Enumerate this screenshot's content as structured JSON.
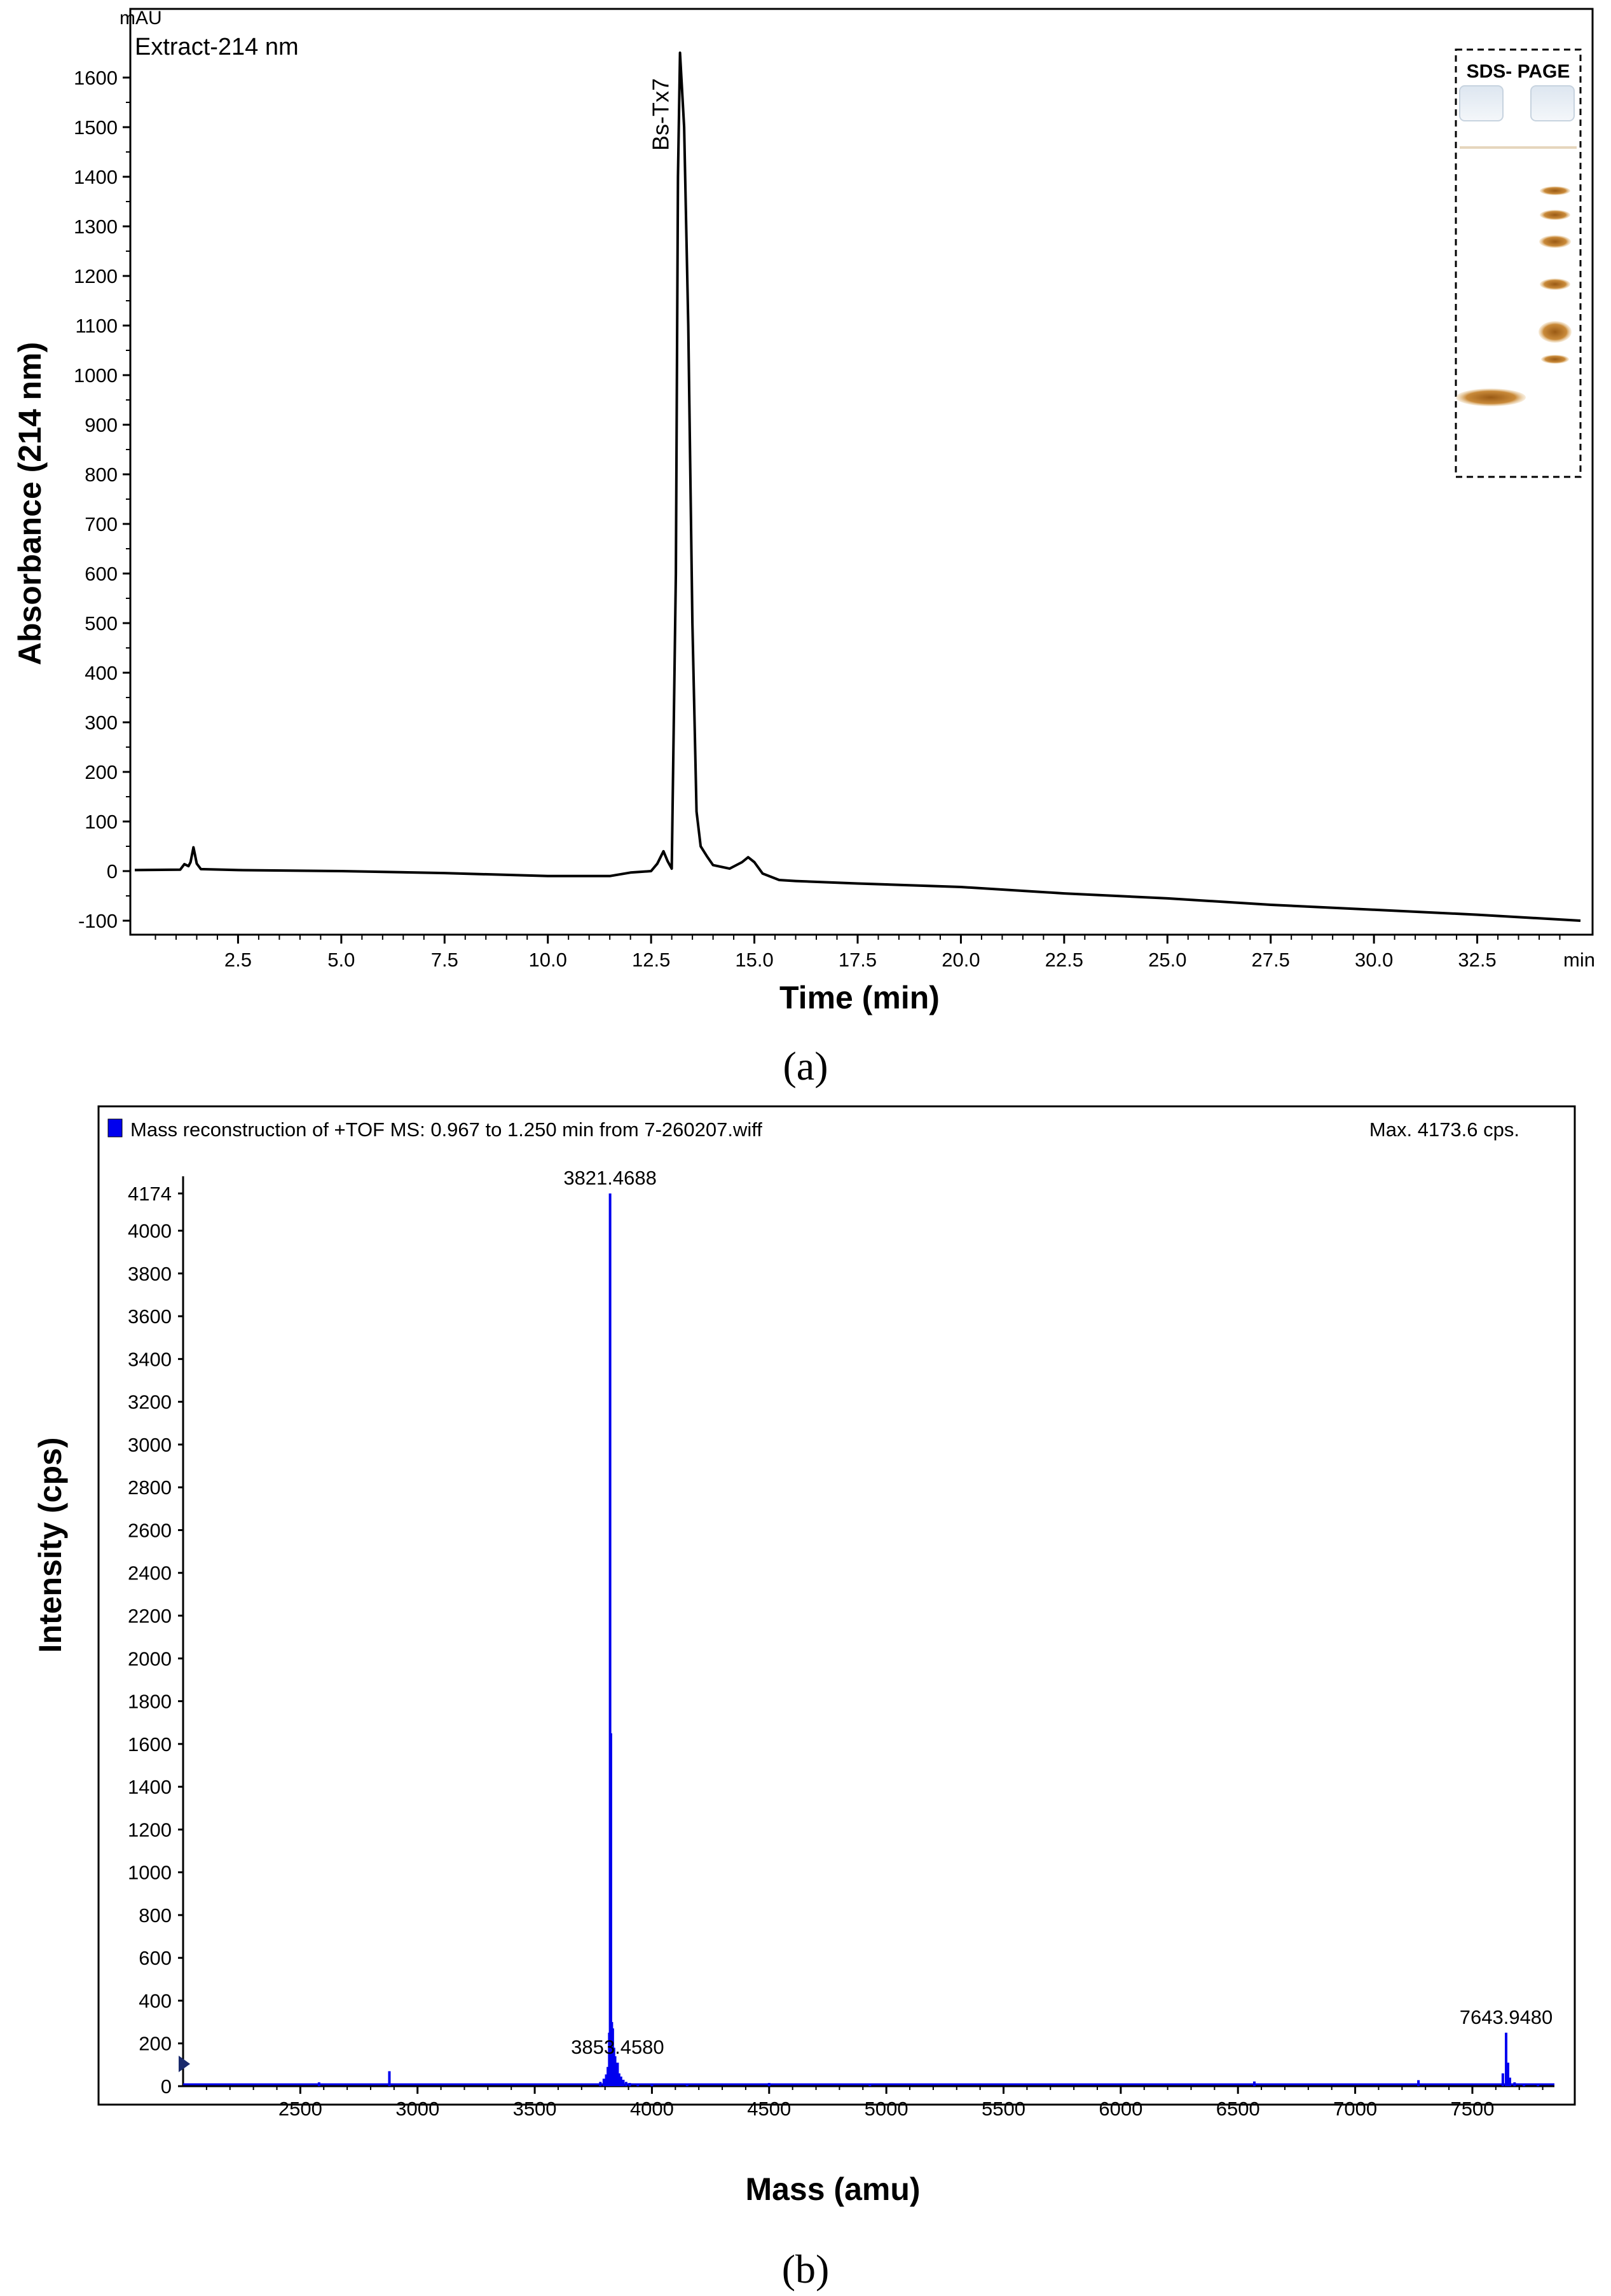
{
  "chart_data": [
    {
      "panel": "(a)",
      "type": "line",
      "unit_label": "mAU",
      "legend": "Extract-214 nm",
      "xlabel": "Time (min)",
      "ylabel": "Absorbance (214 nm)",
      "x_unit_tick": "min",
      "xlim": [
        0,
        35
      ],
      "ylim": [
        -100,
        1650
      ],
      "xticks": [
        "2.5",
        "5.0",
        "7.5",
        "10.0",
        "12.5",
        "15.0",
        "17.5",
        "20.0",
        "22.5",
        "25.0",
        "27.5",
        "30.0",
        "32.5"
      ],
      "yticks": [
        "-100",
        "0",
        "100",
        "200",
        "300",
        "400",
        "500",
        "600",
        "700",
        "800",
        "900",
        "1000",
        "1100",
        "1200",
        "1300",
        "1400",
        "1500",
        "1600"
      ],
      "peak_label": "Bs-Tx7",
      "peak_at": [
        13.2,
        1650
      ],
      "inset": {
        "label": "SDS- PAGE"
      },
      "series": [
        {
          "points": [
            [
              0,
              2
            ],
            [
              1.1,
              3
            ],
            [
              1.2,
              14
            ],
            [
              1.3,
              10
            ],
            [
              1.35,
              18
            ],
            [
              1.42,
              48
            ],
            [
              1.5,
              15
            ],
            [
              1.6,
              4
            ],
            [
              2.5,
              2
            ],
            [
              5,
              0
            ],
            [
              7.5,
              -4
            ],
            [
              10,
              -10
            ],
            [
              11.5,
              -10
            ],
            [
              12.0,
              -3
            ],
            [
              12.5,
              0
            ],
            [
              12.65,
              15
            ],
            [
              12.8,
              40
            ],
            [
              12.9,
              20
            ],
            [
              13.0,
              5
            ],
            [
              13.1,
              600
            ],
            [
              13.15,
              1400
            ],
            [
              13.2,
              1650
            ],
            [
              13.3,
              1500
            ],
            [
              13.4,
              1100
            ],
            [
              13.5,
              500
            ],
            [
              13.6,
              120
            ],
            [
              13.7,
              50
            ],
            [
              13.85,
              30
            ],
            [
              14.0,
              12
            ],
            [
              14.4,
              5
            ],
            [
              14.7,
              18
            ],
            [
              14.85,
              28
            ],
            [
              15.0,
              18
            ],
            [
              15.2,
              -5
            ],
            [
              15.6,
              -18
            ],
            [
              16,
              -20
            ],
            [
              17.5,
              -25
            ],
            [
              20,
              -32
            ],
            [
              22.5,
              -45
            ],
            [
              25,
              -55
            ],
            [
              27.5,
              -68
            ],
            [
              30,
              -78
            ],
            [
              32.5,
              -88
            ],
            [
              35,
              -100
            ]
          ]
        }
      ]
    },
    {
      "panel": "(b)",
      "type": "bar",
      "title": "Mass reconstruction of +TOF MS: 0.967 to 1.250 min from 7-260207.wiff",
      "max_label": "Max. 4173.6 cps.",
      "xlabel": "Mass (amu)",
      "ylabel": "Intensity  (cps)",
      "xlim": [
        2000,
        7850
      ],
      "ylim": [
        0,
        4174
      ],
      "xticks": [
        "2500",
        "3000",
        "3500",
        "4000",
        "4500",
        "5000",
        "5500",
        "6000",
        "6500",
        "7000",
        "7500"
      ],
      "yticks": [
        "0",
        "200",
        "400",
        "600",
        "800",
        "1000",
        "1200",
        "1400",
        "1600",
        "1800",
        "2000",
        "2200",
        "2400",
        "2600",
        "2800",
        "3000",
        "3200",
        "3400",
        "3600",
        "3800",
        "4000",
        "4174"
      ],
      "colors": {
        "series": "#0000ee"
      },
      "peak_labels": [
        {
          "text": "3821.4688",
          "mass": 3821.4688,
          "intensity": 4174
        },
        {
          "text": "3853.4580",
          "mass": 3853.458,
          "intensity": 110
        },
        {
          "text": "7643.9480",
          "mass": 7643.948,
          "intensity": 250
        }
      ],
      "series": [
        {
          "points": [
            [
              2580,
              18
            ],
            [
              2880,
              70
            ],
            [
              3780,
              20
            ],
            [
              3795,
              35
            ],
            [
              3805,
              55
            ],
            [
              3812,
              90
            ],
            [
              3818,
              250
            ],
            [
              3821.5,
              4174
            ],
            [
              3825,
              1650
            ],
            [
              3829,
              300
            ],
            [
              3833,
              270
            ],
            [
              3838,
              180
            ],
            [
              3843,
              140
            ],
            [
              3847,
              95
            ],
            [
              3853.5,
              110
            ],
            [
              3860,
              60
            ],
            [
              3868,
              45
            ],
            [
              3878,
              30
            ],
            [
              3890,
              20
            ],
            [
              3905,
              15
            ],
            [
              3940,
              10
            ],
            [
              4000,
              8
            ],
            [
              4150,
              8
            ],
            [
              4500,
              15
            ],
            [
              4930,
              12
            ],
            [
              6570,
              22
            ],
            [
              7270,
              28
            ],
            [
              7630,
              60
            ],
            [
              7643.9,
              250
            ],
            [
              7652,
              110
            ],
            [
              7660,
              40
            ],
            [
              7680,
              18
            ],
            [
              7720,
              12
            ],
            [
              7780,
              8
            ]
          ]
        }
      ]
    }
  ]
}
